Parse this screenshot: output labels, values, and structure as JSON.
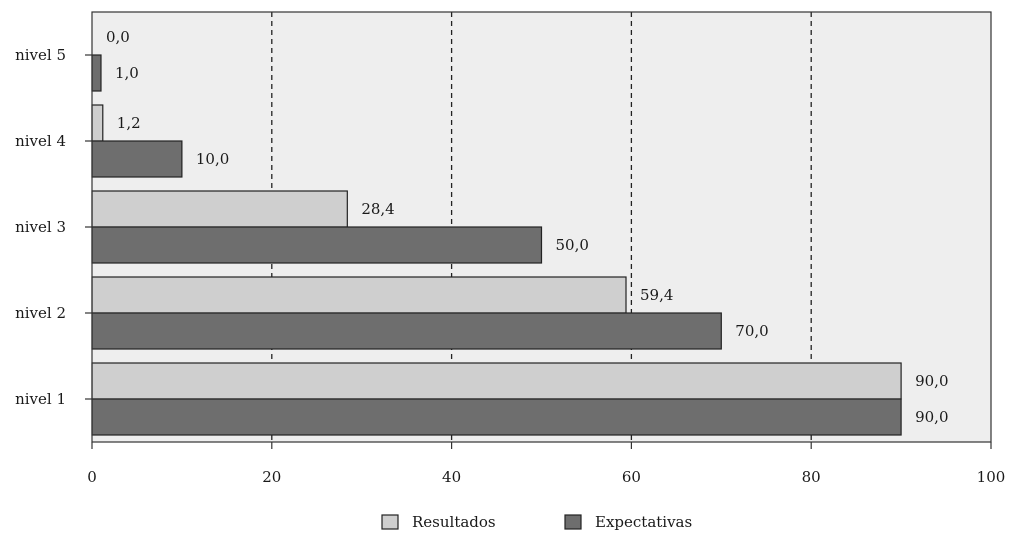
{
  "chart_data": {
    "type": "bar",
    "orientation": "horizontal",
    "categories": [
      "nivel 5",
      "nivel 4",
      "nivel 3",
      "nivel 2",
      "nivel 1"
    ],
    "series": [
      {
        "name": "Resultados",
        "values": [
          0.0,
          1.2,
          28.4,
          59.4,
          90.0
        ],
        "labels": [
          "0,0",
          "1,2",
          "28,4",
          "59,4",
          "90,0"
        ],
        "color": "#cfcfcf"
      },
      {
        "name": "Expectativas",
        "values": [
          1.0,
          10.0,
          50.0,
          70.0,
          90.0
        ],
        "labels": [
          "1,0",
          "10,0",
          "50,0",
          "70,0",
          "90,0"
        ],
        "color": "#6e6e6e"
      }
    ],
    "xlim": [
      0,
      100
    ],
    "xticks": [
      0,
      20,
      40,
      60,
      80,
      100
    ],
    "xtick_labels": [
      "0",
      "20",
      "40",
      "60",
      "80",
      "100"
    ],
    "grid": "vertical dashed",
    "legend_position": "bottom-center",
    "title": "",
    "xlabel": "",
    "ylabel": "",
    "plot_background": "#eeeeee",
    "bar_stroke": "#222222"
  }
}
